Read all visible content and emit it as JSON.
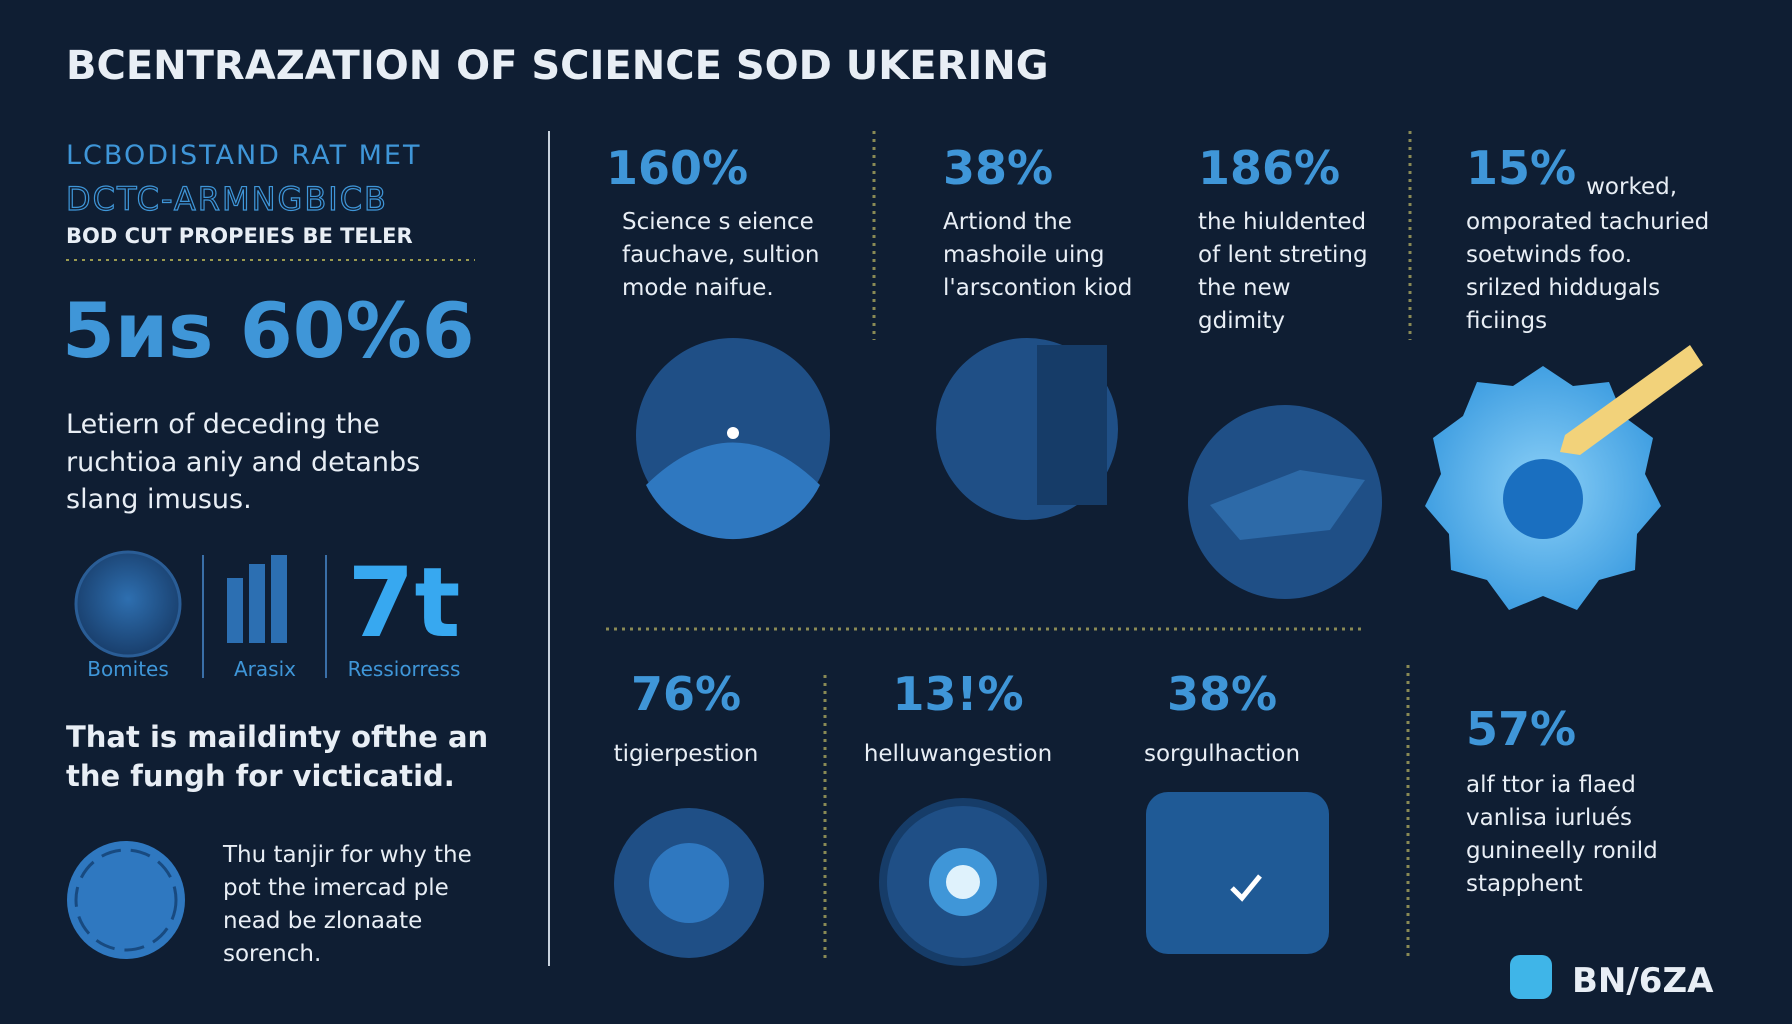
{
  "header": {
    "title": "BCENTRAZATION OF SCIENCE SOD UKERING"
  },
  "sidebar": {
    "kicker": "LCBODISTAND RAT MET",
    "subtitle": "DCTC-ARMNGBICB",
    "tagline": "BOD CUT PROPEIES BE TELER",
    "big_stat": "5иs 60%6",
    "paragraph": [
      "Letiern of deceding the",
      "ruchtioa aniy and detanbs",
      "slang imusus."
    ],
    "icons": [
      {
        "label": "Bomites"
      },
      {
        "label": "Arasix"
      },
      {
        "value": "7t",
        "label": "Ressiorress"
      }
    ],
    "statement": [
      "That is maildinty ofthe an",
      "the fungh for victicatid."
    ],
    "note": [
      "Thu tanjir for why the",
      "pot the imercad ple",
      "nead be zlonaate",
      "sorench."
    ]
  },
  "top_stats": [
    {
      "value": "160%",
      "lines": [
        "Science s eience",
        "fauchave, sultion",
        "mode naifue."
      ]
    },
    {
      "value": "38%",
      "lines": [
        "Artiond the",
        "mashoile uing",
        "l'arscontion kiod"
      ]
    },
    {
      "value": "186%",
      "lines": [
        "the hiuldented",
        "of lent streting",
        "the new",
        "gdimity"
      ]
    },
    {
      "value": "15%",
      "aside": "worked,",
      "lines": [
        "omporated tachuried",
        "soetwinds foo.",
        "srilzed hiddugals",
        "ficiings"
      ]
    }
  ],
  "bottom_stats": [
    {
      "value": "76%",
      "label": "tigierpestion"
    },
    {
      "value": "13!%",
      "label": "helluwangestion"
    },
    {
      "value": "38%",
      "label": "sorgulhaction"
    },
    {
      "value": "57%",
      "lines": [
        "alf ttor ia flaed",
        "vanlisa iurlués",
        "gunineelly ronild",
        "stapphent"
      ]
    }
  ],
  "logo": "BN/6ZA"
}
